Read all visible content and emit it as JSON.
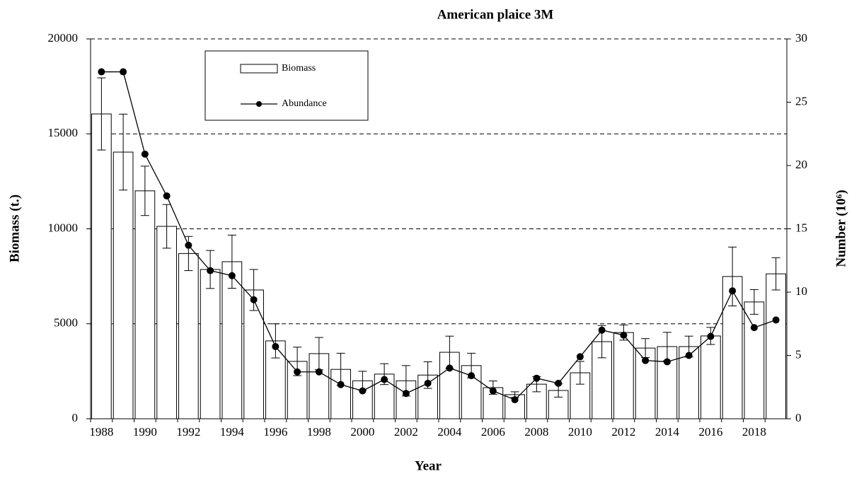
{
  "chart_data": {
    "type": "bar",
    "title": "American  plaice 3M",
    "xlabel": "Year",
    "ylabel": "Biomass (t.)",
    "y2label": "Number  (10⁶)",
    "categories": [
      "1988",
      null,
      "1990",
      null,
      "1992",
      null,
      "1994",
      null,
      "1996",
      null,
      "1998",
      null,
      "2000",
      null,
      "2002",
      null,
      "2004",
      null,
      "2006",
      null,
      "2008",
      null,
      "2010",
      null,
      "2012",
      null,
      "2014",
      null,
      "2016",
      null,
      "2018",
      null
    ],
    "series": [
      {
        "name": "Biomass",
        "type": "bar",
        "color": "#ffffff",
        "values": [
          16050,
          14040,
          12000,
          10130,
          8700,
          7860,
          8270,
          6780,
          4100,
          3020,
          3430,
          2600,
          2000,
          2350,
          2000,
          2300,
          3500,
          2800,
          1640,
          1270,
          1820,
          1490,
          2420,
          4060,
          4540,
          3720,
          3800,
          3800,
          4360,
          7490,
          6150,
          7630
        ],
        "errors": [
          1900,
          2000,
          1300,
          1150,
          900,
          1000,
          1400,
          1080,
          900,
          750,
          850,
          850,
          500,
          550,
          800,
          700,
          850,
          650,
          350,
          150,
          400,
          350,
          600,
          850,
          400,
          500,
          750,
          550,
          450,
          1550,
          650,
          850
        ]
      },
      {
        "name": "Abundance",
        "type": "line",
        "color": "#000000",
        "axis": "y2",
        "values": [
          27.4,
          27.4,
          20.9,
          17.6,
          13.7,
          11.7,
          11.3,
          9.4,
          5.7,
          3.7,
          3.7,
          2.7,
          2.2,
          3.1,
          2.0,
          2.8,
          4.0,
          3.4,
          2.2,
          1.5,
          3.2,
          2.8,
          4.9,
          7.0,
          6.6,
          4.6,
          4.5,
          5.0,
          6.5,
          10.1,
          7.2,
          7.8
        ]
      }
    ],
    "ylim": [
      0,
      20000
    ],
    "yticks": [
      0,
      5000,
      10000,
      15000,
      20000
    ],
    "y2lim": [
      0,
      30
    ],
    "y2ticks": [
      0,
      5,
      10,
      15,
      20,
      25,
      30
    ],
    "grid": true,
    "legend": "upper-left"
  }
}
